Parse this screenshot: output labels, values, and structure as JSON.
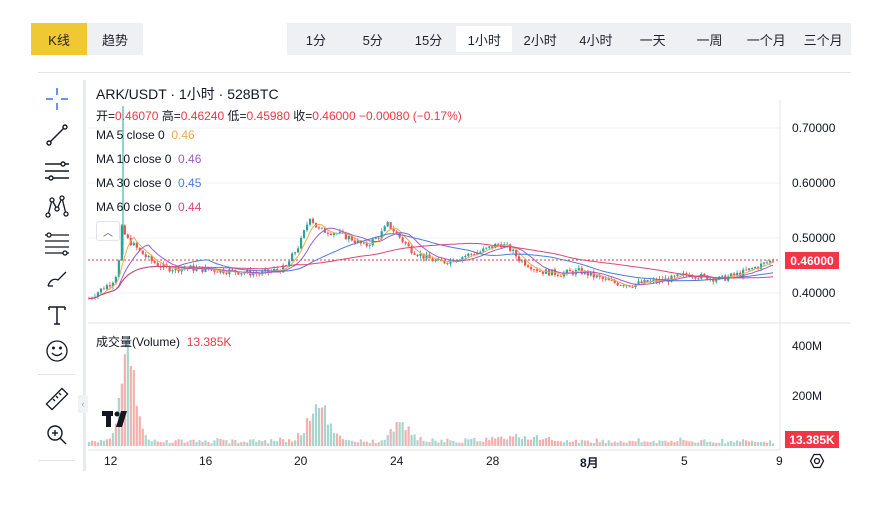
{
  "tabs": {
    "kline": "K线",
    "trend": "趋势"
  },
  "intervals": [
    {
      "label": "1分",
      "w": 58
    },
    {
      "label": "5分",
      "w": 56
    },
    {
      "label": "15分",
      "w": 56
    },
    {
      "label": "1小时",
      "w": 56,
      "active": true
    },
    {
      "label": "2小时",
      "w": 56
    },
    {
      "label": "4小时",
      "w": 56
    },
    {
      "label": "一天",
      "w": 58
    },
    {
      "label": "一周",
      "w": 56
    },
    {
      "label": "一个月",
      "w": 58
    },
    {
      "label": "三个月",
      "w": 56
    }
  ],
  "toolbar": {
    "icons": [
      "crosshair-icon",
      "trend-line-icon",
      "horizontal-lines-icon",
      "pattern-icon",
      "fib-icon",
      "brush-icon",
      "text-icon",
      "emoji-icon",
      "ruler-icon",
      "zoom-in-icon"
    ]
  },
  "legend": {
    "title": "ARK/USDT · 1小时 · 528BTC",
    "open_label": "开=",
    "open": "0.46070",
    "high_label": "高=",
    "high": "0.46240",
    "low_label": "低=",
    "low": "0.45980",
    "close_label": "收=",
    "close": "0.46000",
    "change": "−0.00080 (−0.17%)",
    "ma": [
      {
        "label": "MA 5 close 0",
        "value": "0.46",
        "color": "#f0a94c"
      },
      {
        "label": "MA 10 close 0",
        "value": "0.46",
        "color": "#9c5ec9"
      },
      {
        "label": "MA 30 close 0",
        "value": "0.45",
        "color": "#4a7cdb"
      },
      {
        "label": "MA 60 close 0",
        "value": "0.44",
        "color": "#d9467a"
      }
    ],
    "volume_label": "成交量(Volume)",
    "volume_value": "13.385K"
  },
  "price_axis": [
    "0.70000",
    "0.60000",
    "0.50000",
    "0.40000"
  ],
  "current_price": "0.46000",
  "volume_axis": [
    "400M",
    "200M"
  ],
  "current_volume": "13.385K",
  "time_axis": [
    "12",
    "16",
    "20",
    "24",
    "28",
    "8月",
    "5",
    "9"
  ],
  "colors": {
    "up": "#26a69a",
    "down": "#ef5350",
    "accent": "#f0c833",
    "ma5": "#f0a94c",
    "ma10": "#9c5ec9",
    "ma30": "#4a7cdb",
    "ma60": "#d9467a",
    "price_line": "#f23645"
  }
}
